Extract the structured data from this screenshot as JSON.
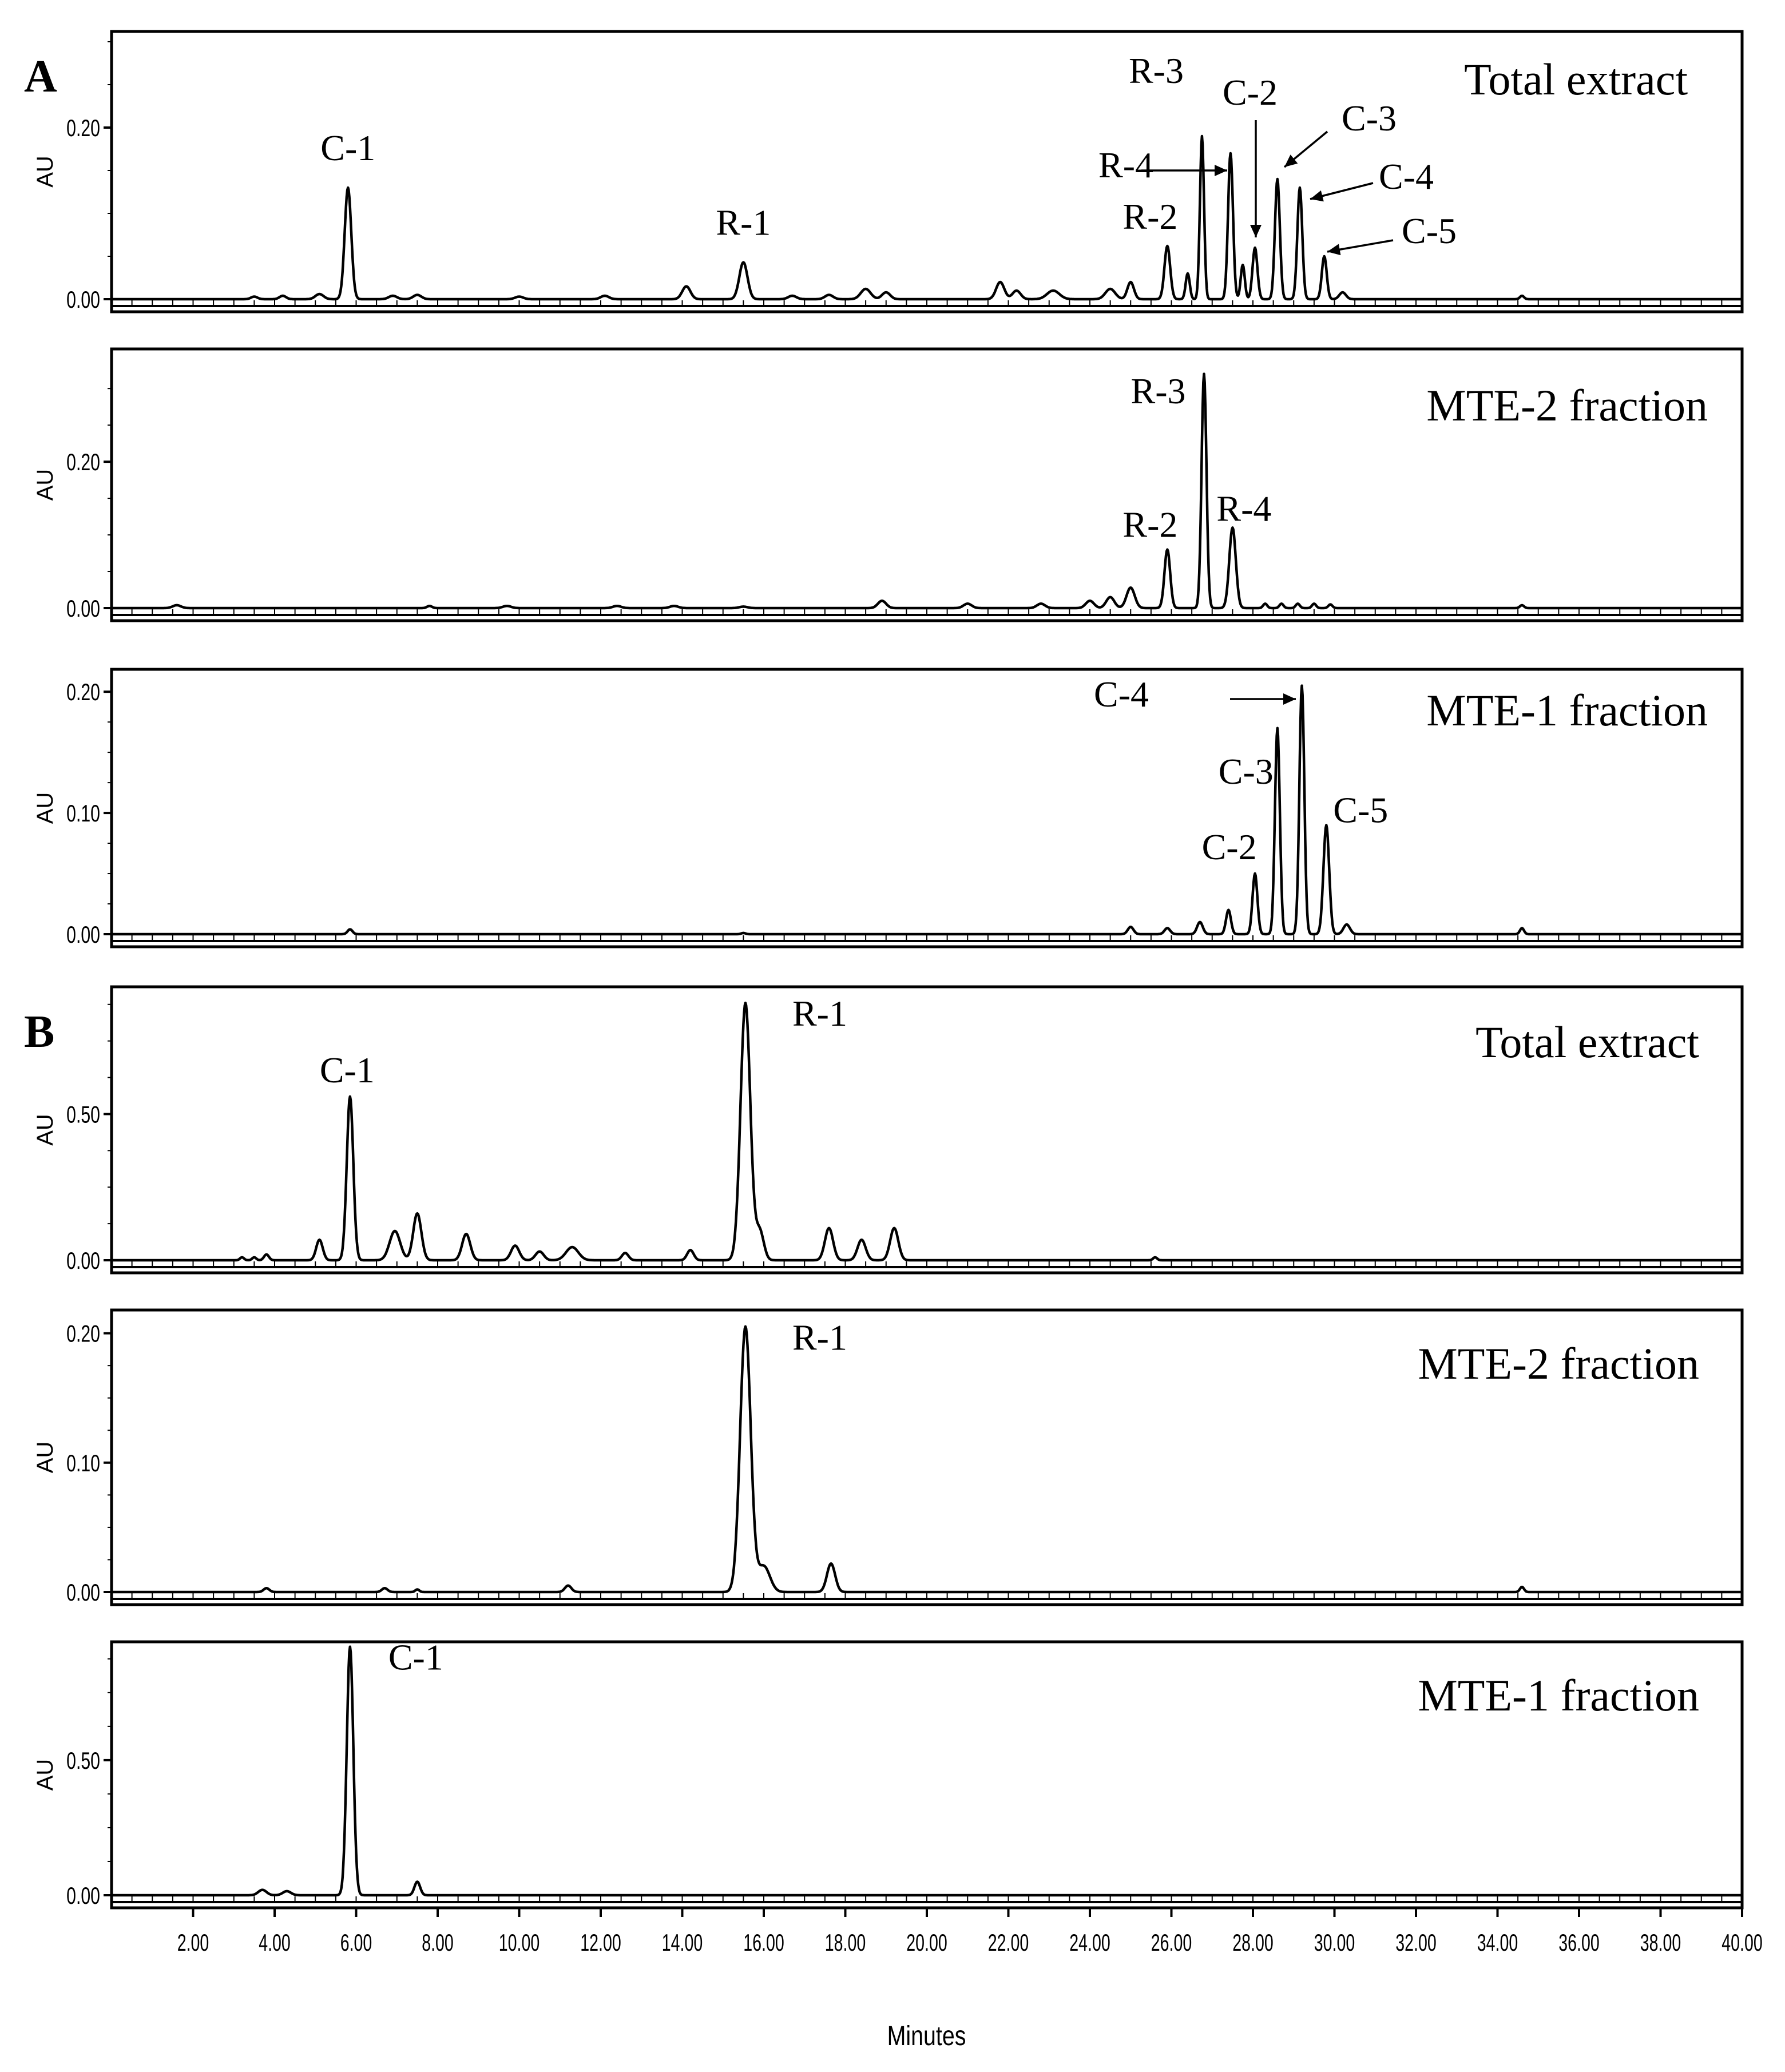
{
  "figure": {
    "x_axis_label": "Minutes",
    "y_axis_label": "AU"
  },
  "chart_data": [
    {
      "type": "line",
      "section_label": "A",
      "title": "Total extract",
      "ylabel": "AU",
      "xlabel": "Minutes",
      "xlim": [
        0,
        40
      ],
      "ylim": [
        0,
        0.3
      ],
      "yticks": [
        "0.00",
        "0.20"
      ],
      "ytick_values": [
        0,
        0.2
      ],
      "grid": false,
      "baseline": 0.0,
      "peaks": [
        {
          "t": 3.5,
          "h": 0.003,
          "w": 0.08
        },
        {
          "t": 4.2,
          "h": 0.004,
          "w": 0.08
        },
        {
          "t": 5.1,
          "h": 0.006,
          "w": 0.1
        },
        {
          "t": 5.8,
          "h": 0.13,
          "w": 0.08
        },
        {
          "t": 6.9,
          "h": 0.004,
          "w": 0.1
        },
        {
          "t": 7.5,
          "h": 0.005,
          "w": 0.1
        },
        {
          "t": 10.0,
          "h": 0.003,
          "w": 0.1
        },
        {
          "t": 12.1,
          "h": 0.004,
          "w": 0.1
        },
        {
          "t": 14.1,
          "h": 0.015,
          "w": 0.1
        },
        {
          "t": 15.5,
          "h": 0.043,
          "w": 0.1
        },
        {
          "t": 16.7,
          "h": 0.004,
          "w": 0.1
        },
        {
          "t": 17.6,
          "h": 0.005,
          "w": 0.1
        },
        {
          "t": 18.5,
          "h": 0.012,
          "w": 0.12
        },
        {
          "t": 19.0,
          "h": 0.008,
          "w": 0.1
        },
        {
          "t": 21.8,
          "h": 0.02,
          "w": 0.1
        },
        {
          "t": 22.2,
          "h": 0.01,
          "w": 0.1
        },
        {
          "t": 23.1,
          "h": 0.01,
          "w": 0.15
        },
        {
          "t": 24.5,
          "h": 0.012,
          "w": 0.12
        },
        {
          "t": 25.0,
          "h": 0.02,
          "w": 0.08
        },
        {
          "t": 25.9,
          "h": 0.062,
          "w": 0.07
        },
        {
          "t": 26.4,
          "h": 0.03,
          "w": 0.05
        },
        {
          "t": 26.75,
          "h": 0.19,
          "w": 0.05
        },
        {
          "t": 27.45,
          "h": 0.17,
          "w": 0.06
        },
        {
          "t": 27.75,
          "h": 0.04,
          "w": 0.05
        },
        {
          "t": 28.05,
          "h": 0.06,
          "w": 0.06
        },
        {
          "t": 28.6,
          "h": 0.14,
          "w": 0.06
        },
        {
          "t": 29.15,
          "h": 0.13,
          "w": 0.06
        },
        {
          "t": 29.75,
          "h": 0.05,
          "w": 0.06
        },
        {
          "t": 30.2,
          "h": 0.008,
          "w": 0.08
        },
        {
          "t": 34.6,
          "h": 0.004,
          "w": 0.05
        }
      ],
      "annotations": [
        {
          "label": "C-1",
          "t": 5.8
        },
        {
          "label": "R-1",
          "t": 15.5
        },
        {
          "label": "R-2",
          "t": 25.9
        },
        {
          "label": "R-3",
          "t": 26.75
        },
        {
          "label": "R-4",
          "t": 27.45,
          "arrow": true
        },
        {
          "label": "C-2",
          "t": 28.05,
          "arrow": true
        },
        {
          "label": "C-3",
          "t": 28.6,
          "arrow": true
        },
        {
          "label": "C-4",
          "t": 29.15,
          "arrow": true
        },
        {
          "label": "C-5",
          "t": 29.75,
          "arrow": true
        }
      ]
    },
    {
      "type": "line",
      "title": "MTE-2 fraction",
      "ylabel": "AU",
      "xlabel": "Minutes",
      "xlim": [
        0,
        40
      ],
      "ylim": [
        0,
        0.34
      ],
      "yticks": [
        "0.00",
        "0.20"
      ],
      "ytick_values": [
        0,
        0.2
      ],
      "grid": false,
      "baseline": 0.0,
      "peaks": [
        {
          "t": 1.6,
          "h": 0.004,
          "w": 0.1
        },
        {
          "t": 7.8,
          "h": 0.003,
          "w": 0.06
        },
        {
          "t": 9.7,
          "h": 0.003,
          "w": 0.1
        },
        {
          "t": 12.4,
          "h": 0.003,
          "w": 0.1
        },
        {
          "t": 13.8,
          "h": 0.003,
          "w": 0.1
        },
        {
          "t": 15.5,
          "h": 0.002,
          "w": 0.1
        },
        {
          "t": 18.9,
          "h": 0.01,
          "w": 0.1
        },
        {
          "t": 21.0,
          "h": 0.006,
          "w": 0.1
        },
        {
          "t": 22.8,
          "h": 0.006,
          "w": 0.1
        },
        {
          "t": 24.0,
          "h": 0.01,
          "w": 0.1
        },
        {
          "t": 24.5,
          "h": 0.015,
          "w": 0.1
        },
        {
          "t": 25.0,
          "h": 0.028,
          "w": 0.1
        },
        {
          "t": 25.9,
          "h": 0.08,
          "w": 0.07
        },
        {
          "t": 26.8,
          "h": 0.32,
          "w": 0.06
        },
        {
          "t": 27.5,
          "h": 0.11,
          "w": 0.08
        },
        {
          "t": 28.3,
          "h": 0.006,
          "w": 0.05
        },
        {
          "t": 28.7,
          "h": 0.006,
          "w": 0.05
        },
        {
          "t": 29.1,
          "h": 0.006,
          "w": 0.05
        },
        {
          "t": 29.5,
          "h": 0.006,
          "w": 0.05
        },
        {
          "t": 29.9,
          "h": 0.005,
          "w": 0.05
        },
        {
          "t": 34.6,
          "h": 0.004,
          "w": 0.05
        }
      ],
      "annotations": [
        {
          "label": "R-2",
          "t": 25.9
        },
        {
          "label": "R-3",
          "t": 26.8
        },
        {
          "label": "R-4",
          "t": 27.5
        }
      ]
    },
    {
      "type": "line",
      "title": "MTE-1 fraction",
      "ylabel": "AU",
      "xlabel": "Minutes",
      "xlim": [
        0,
        40
      ],
      "ylim": [
        0,
        0.21
      ],
      "yticks": [
        "0.00",
        "0.10",
        "0.20"
      ],
      "ytick_values": [
        0,
        0.1,
        0.2
      ],
      "grid": false,
      "baseline": 0.0,
      "peaks": [
        {
          "t": 5.85,
          "h": 0.004,
          "w": 0.06
        },
        {
          "t": 15.5,
          "h": 0.001,
          "w": 0.05
        },
        {
          "t": 25.0,
          "h": 0.006,
          "w": 0.07
        },
        {
          "t": 25.9,
          "h": 0.005,
          "w": 0.07
        },
        {
          "t": 26.7,
          "h": 0.01,
          "w": 0.07
        },
        {
          "t": 27.4,
          "h": 0.02,
          "w": 0.06
        },
        {
          "t": 28.05,
          "h": 0.05,
          "w": 0.06
        },
        {
          "t": 28.6,
          "h": 0.17,
          "w": 0.06
        },
        {
          "t": 29.2,
          "h": 0.205,
          "w": 0.06
        },
        {
          "t": 29.8,
          "h": 0.09,
          "w": 0.07
        },
        {
          "t": 30.3,
          "h": 0.008,
          "w": 0.08
        },
        {
          "t": 34.6,
          "h": 0.005,
          "w": 0.05
        }
      ],
      "annotations": [
        {
          "label": "C-2",
          "t": 28.05
        },
        {
          "label": "C-3",
          "t": 28.6
        },
        {
          "label": "C-4",
          "t": 29.2,
          "arrow": true
        },
        {
          "label": "C-5",
          "t": 29.8
        }
      ]
    },
    {
      "type": "line",
      "section_label": "B",
      "title": "Total extract",
      "ylabel": "AU",
      "xlabel": "Minutes",
      "xlim": [
        0,
        40
      ],
      "ylim": [
        0,
        0.9
      ],
      "yticks": [
        "0.00",
        "0.50"
      ],
      "ytick_values": [
        0,
        0.5
      ],
      "grid": false,
      "baseline": 0.0,
      "peaks": [
        {
          "t": 3.2,
          "h": 0.01,
          "w": 0.05
        },
        {
          "t": 3.5,
          "h": 0.01,
          "w": 0.05
        },
        {
          "t": 3.8,
          "h": 0.02,
          "w": 0.06
        },
        {
          "t": 5.1,
          "h": 0.07,
          "w": 0.08
        },
        {
          "t": 5.85,
          "h": 0.56,
          "w": 0.08
        },
        {
          "t": 6.95,
          "h": 0.1,
          "w": 0.13
        },
        {
          "t": 7.5,
          "h": 0.16,
          "w": 0.1
        },
        {
          "t": 8.7,
          "h": 0.09,
          "w": 0.1
        },
        {
          "t": 9.9,
          "h": 0.05,
          "w": 0.1
        },
        {
          "t": 10.5,
          "h": 0.03,
          "w": 0.1
        },
        {
          "t": 11.3,
          "h": 0.045,
          "w": 0.15
        },
        {
          "t": 12.6,
          "h": 0.025,
          "w": 0.08
        },
        {
          "t": 14.2,
          "h": 0.035,
          "w": 0.08
        },
        {
          "t": 15.55,
          "h": 0.88,
          "w": 0.12
        },
        {
          "t": 15.9,
          "h": 0.1,
          "w": 0.1
        },
        {
          "t": 17.6,
          "h": 0.11,
          "w": 0.1
        },
        {
          "t": 18.4,
          "h": 0.07,
          "w": 0.1
        },
        {
          "t": 19.2,
          "h": 0.11,
          "w": 0.1
        },
        {
          "t": 25.6,
          "h": 0.01,
          "w": 0.05
        }
      ],
      "annotations": [
        {
          "label": "C-1",
          "t": 5.85
        },
        {
          "label": "R-1",
          "t": 15.55
        }
      ]
    },
    {
      "type": "line",
      "title": "MTE-2 fraction",
      "ylabel": "AU",
      "xlabel": "Minutes",
      "xlim": [
        0,
        40
      ],
      "ylim": [
        0,
        0.21
      ],
      "yticks": [
        "0.00",
        "0.10",
        "0.20"
      ],
      "ytick_values": [
        0,
        0.1,
        0.2
      ],
      "grid": false,
      "baseline": 0.0,
      "peaks": [
        {
          "t": 3.8,
          "h": 0.003,
          "w": 0.07
        },
        {
          "t": 6.7,
          "h": 0.003,
          "w": 0.07
        },
        {
          "t": 7.5,
          "h": 0.002,
          "w": 0.05
        },
        {
          "t": 11.2,
          "h": 0.005,
          "w": 0.08
        },
        {
          "t": 15.55,
          "h": 0.205,
          "w": 0.13
        },
        {
          "t": 16.0,
          "h": 0.02,
          "w": 0.15
        },
        {
          "t": 17.65,
          "h": 0.022,
          "w": 0.1
        },
        {
          "t": 34.6,
          "h": 0.004,
          "w": 0.05
        }
      ],
      "annotations": [
        {
          "label": "R-1",
          "t": 15.55
        }
      ]
    },
    {
      "type": "line",
      "title": "MTE-1 fraction",
      "ylabel": "AU",
      "xlabel": "Minutes",
      "xlim": [
        0,
        40
      ],
      "xticks": [
        "2.00",
        "4.00",
        "6.00",
        "8.00",
        "10.00",
        "12.00",
        "14.00",
        "16.00",
        "18.00",
        "20.00",
        "22.00",
        "24.00",
        "26.00",
        "28.00",
        "30.00",
        "32.00",
        "34.00",
        "36.00",
        "38.00",
        "40.00"
      ],
      "xtick_values": [
        2,
        4,
        6,
        8,
        10,
        12,
        14,
        16,
        18,
        20,
        22,
        24,
        26,
        28,
        30,
        32,
        34,
        36,
        38,
        40
      ],
      "ylim": [
        0,
        0.9
      ],
      "yticks": [
        "0.00",
        "0.50"
      ],
      "ytick_values": [
        0,
        0.5
      ],
      "grid": false,
      "baseline": 0.0,
      "peaks": [
        {
          "t": 3.7,
          "h": 0.02,
          "w": 0.1
        },
        {
          "t": 4.3,
          "h": 0.015,
          "w": 0.1
        },
        {
          "t": 5.85,
          "h": 0.92,
          "w": 0.08
        },
        {
          "t": 7.5,
          "h": 0.05,
          "w": 0.07
        }
      ],
      "annotations": [
        {
          "label": "C-1",
          "t": 5.85
        }
      ]
    }
  ]
}
